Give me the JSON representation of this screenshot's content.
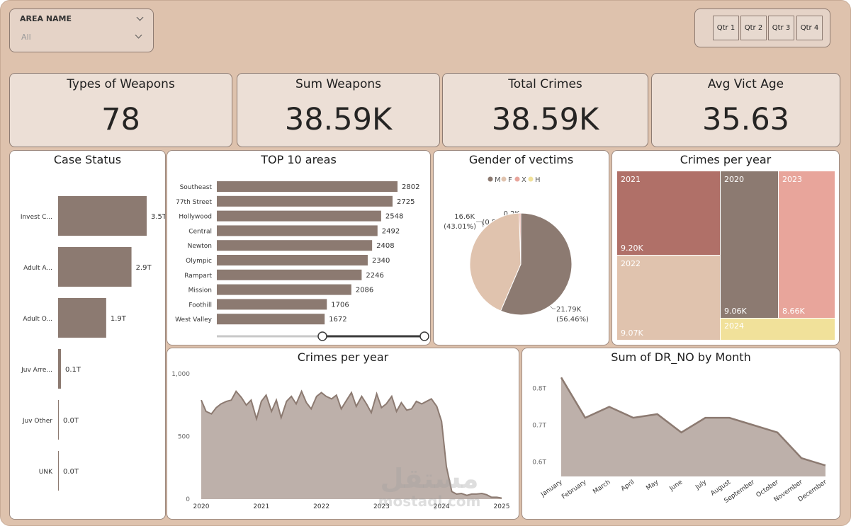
{
  "slicer": {
    "label": "AREA NAME",
    "value": "All"
  },
  "quarters": [
    "Qtr 1",
    "Qtr 2",
    "Qtr 3",
    "Qtr 4"
  ],
  "kpis": [
    {
      "title": "Types of Weapons",
      "value": "78"
    },
    {
      "title": "Sum Weapons",
      "value": "38.59K"
    },
    {
      "title": "Total Crimes",
      "value": "38.59K"
    },
    {
      "title": "Avg Vict Age",
      "value": "35.63"
    }
  ],
  "colors": {
    "brown": "#8c7a71",
    "tan": "#e0c3ae",
    "rose": "#e8a59b",
    "yellow": "#f1e19a",
    "darkred": "#b07068",
    "area": "#bdb0aa",
    "line": "#8c7a71"
  },
  "case_status": {
    "title": "Case Status",
    "chart_data": {
      "type": "bar",
      "orientation": "horizontal",
      "categories": [
        "Invest C...",
        "Adult A...",
        "Adult O...",
        "Juv Arre...",
        "Juv Other",
        "UNK"
      ],
      "values": [
        3.5,
        2.9,
        1.9,
        0.1,
        0.0,
        0.0
      ],
      "labels": [
        "3.5T",
        "2.9T",
        "1.9T",
        "0.1T",
        "0.0T",
        "0.0T"
      ]
    }
  },
  "top_areas": {
    "title": "TOP 10 areas",
    "chart_data": {
      "type": "bar",
      "orientation": "horizontal",
      "categories": [
        "Southeast",
        "77th Street",
        "Hollywood",
        "Central",
        "Newton",
        "Olympic",
        "Rampart",
        "Mission",
        "Foothill",
        "West Valley"
      ],
      "values": [
        2802,
        2725,
        2548,
        2492,
        2408,
        2340,
        2246,
        2086,
        1706,
        1672
      ]
    }
  },
  "gender": {
    "title": "Gender of vectims",
    "legend": [
      "M",
      "F",
      "X",
      "H"
    ],
    "legend_colors": [
      "#8c7a71",
      "#e0c3ae",
      "#e8a59b",
      "#f1e19a"
    ],
    "chart_data": {
      "type": "pie",
      "categories": [
        "M",
        "F",
        "X"
      ],
      "values": [
        21.79,
        16.6,
        0.2
      ],
      "percents": [
        56.46,
        43.01,
        0.52
      ]
    },
    "labels": [
      {
        "value": "21.79K",
        "pct": "(56.46%)"
      },
      {
        "value": "16.6K",
        "pct": "(43.01%)"
      },
      {
        "value": "0.2K",
        "pct": "(0.52%)"
      }
    ]
  },
  "treemap": {
    "title": "Crimes per year",
    "tiles": [
      {
        "year": "2021",
        "value": "9.20K"
      },
      {
        "year": "2022",
        "value": "9.07K"
      },
      {
        "year": "2020",
        "value": "9.06K"
      },
      {
        "year": "2023",
        "value": "8.66K"
      },
      {
        "year": "2024",
        "value": ""
      }
    ]
  },
  "crimes_trend": {
    "title": "Crimes per year",
    "chart_data": {
      "type": "area",
      "x_range": [
        2020,
        2025
      ],
      "xticks": [
        "2020",
        "2021",
        "2022",
        "2023",
        "2024",
        "2025"
      ],
      "ylim": [
        0,
        1000
      ],
      "yticks": [
        "0",
        "500",
        "1,000"
      ],
      "x": [
        2020.0,
        2020.08,
        2020.17,
        2020.25,
        2020.33,
        2020.42,
        2020.5,
        2020.58,
        2020.67,
        2020.75,
        2020.83,
        2020.92,
        2021.0,
        2021.08,
        2021.17,
        2021.25,
        2021.33,
        2021.42,
        2021.5,
        2021.58,
        2021.67,
        2021.75,
        2021.83,
        2021.92,
        2022.0,
        2022.08,
        2022.17,
        2022.25,
        2022.33,
        2022.42,
        2022.5,
        2022.58,
        2022.67,
        2022.75,
        2022.83,
        2022.92,
        2023.0,
        2023.08,
        2023.17,
        2023.25,
        2023.33,
        2023.42,
        2023.5,
        2023.58,
        2023.67,
        2023.75,
        2023.83,
        2023.92,
        2024.0,
        2024.08,
        2024.17,
        2024.25,
        2024.33,
        2024.42,
        2024.5,
        2024.58,
        2024.67,
        2024.75,
        2024.83,
        2024.92,
        2025.0
      ],
      "y": [
        790,
        700,
        680,
        730,
        760,
        780,
        790,
        860,
        810,
        750,
        790,
        640,
        780,
        830,
        700,
        790,
        650,
        780,
        820,
        760,
        860,
        770,
        720,
        820,
        850,
        820,
        800,
        830,
        720,
        790,
        850,
        740,
        820,
        760,
        690,
        840,
        730,
        760,
        820,
        700,
        770,
        710,
        720,
        780,
        760,
        780,
        800,
        740,
        620,
        260,
        60,
        40,
        45,
        30,
        40,
        40,
        45,
        35,
        15,
        15,
        8
      ]
    }
  },
  "month_chart": {
    "title": "Sum of DR_NO by Month",
    "chart_data": {
      "type": "area",
      "categories": [
        "January",
        "February",
        "March",
        "April",
        "May",
        "June",
        "July",
        "August",
        "September",
        "October",
        "November",
        "December"
      ],
      "values": [
        0.83,
        0.72,
        0.75,
        0.72,
        0.73,
        0.68,
        0.72,
        0.72,
        0.7,
        0.68,
        0.61,
        0.59
      ],
      "ylim": [
        0.56,
        0.84
      ],
      "yticks": [
        "0.6T",
        "0.7T",
        "0.8T"
      ]
    }
  },
  "watermark": {
    "arabic": "مستقل",
    "latin": "mostaql.com"
  }
}
